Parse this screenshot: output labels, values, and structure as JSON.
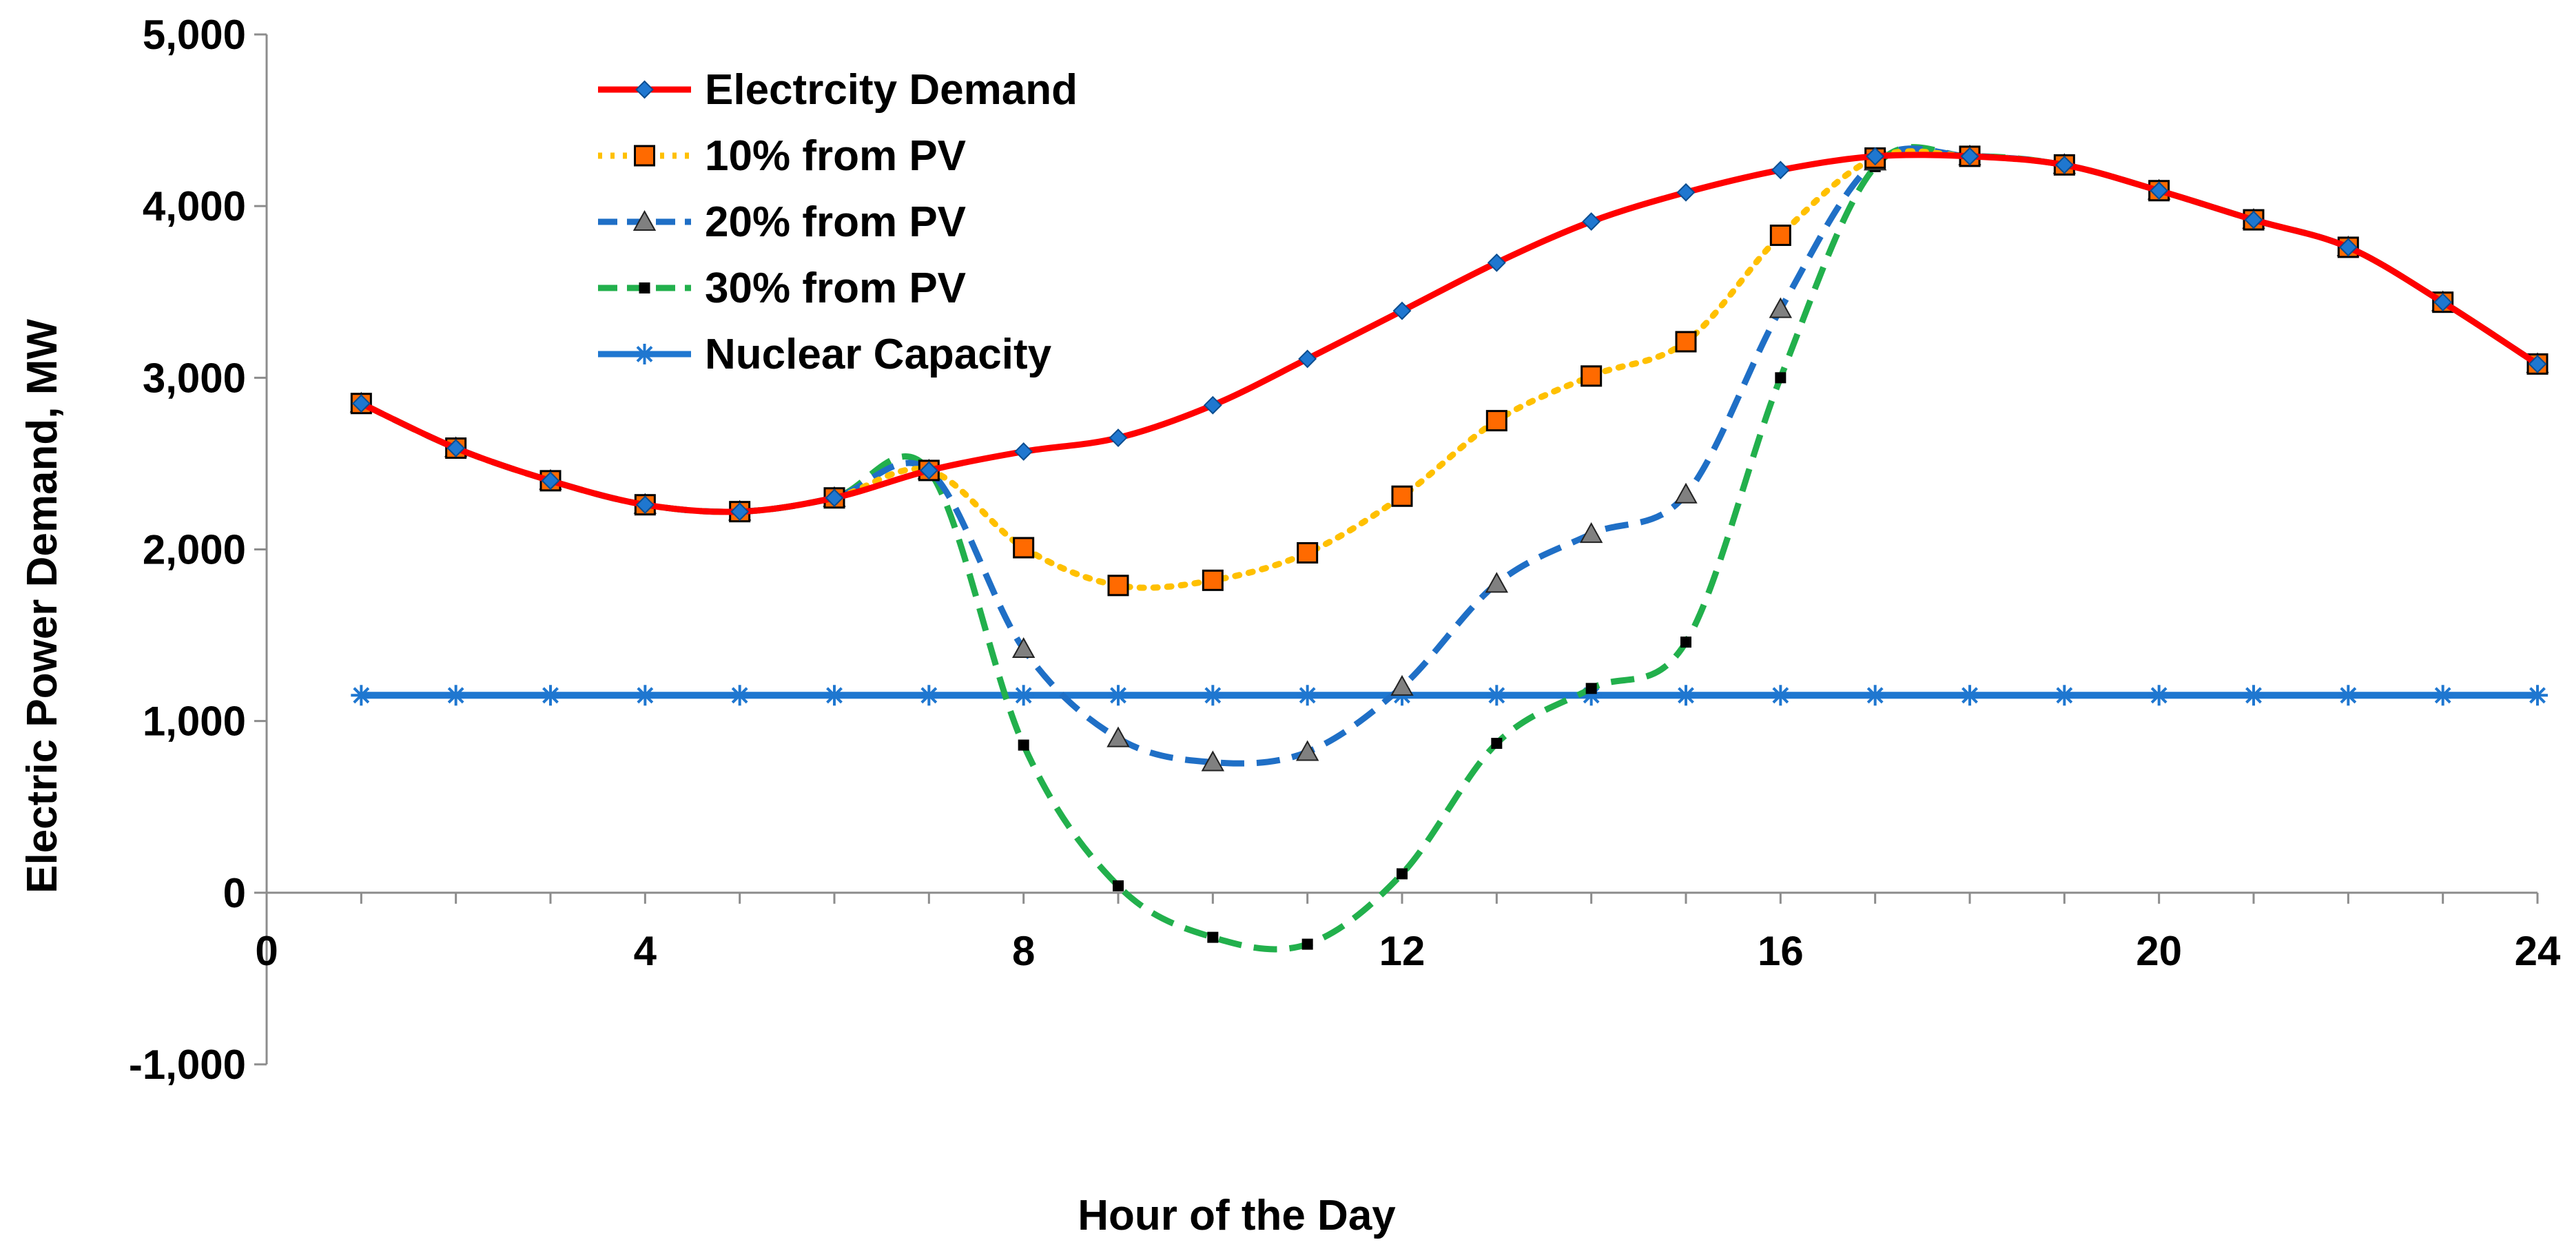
{
  "chart_data": {
    "type": "line",
    "title": "",
    "xlabel": "Hour of the Day",
    "ylabel": "Electric Power Demand, MW",
    "xlim": [
      0,
      24
    ],
    "ylim": [
      -1000,
      5000
    ],
    "x_ticks": [
      0,
      4,
      8,
      12,
      16,
      20,
      24
    ],
    "y_ticks": [
      -1000,
      0,
      1000,
      2000,
      3000,
      4000,
      5000
    ],
    "x_tick_labels": [
      "0",
      "4",
      "8",
      "12",
      "16",
      "20",
      "24"
    ],
    "y_tick_labels": [
      "-1,000",
      "0",
      "1,000",
      "2,000",
      "3,000",
      "4,000",
      "5,000"
    ],
    "grid": false,
    "legend_position": "top-left",
    "x": [
      1,
      2,
      3,
      4,
      5,
      6,
      7,
      8,
      9,
      10,
      11,
      12,
      13,
      14,
      15,
      16,
      17,
      18,
      19,
      20,
      21,
      22,
      23,
      24
    ],
    "series": [
      {
        "name": "Electrcity Demand",
        "color": "#ff0000",
        "line_style": "solid",
        "marker": "diamond",
        "marker_color": "#1f77d0",
        "values": [
          2850,
          2590,
          2400,
          2260,
          2220,
          2300,
          2460,
          2570,
          2650,
          2840,
          3110,
          3390,
          3670,
          3910,
          4080,
          4210,
          4290,
          4290,
          4240,
          4090,
          3920,
          3760,
          3440,
          3080
        ]
      },
      {
        "name": "10% from PV",
        "color": "#ffc000",
        "line_style": "dotted",
        "marker": "square",
        "marker_color": "#ff6a00",
        "values": [
          2850,
          2590,
          2400,
          2260,
          2220,
          2300,
          2460,
          2010,
          1790,
          1820,
          1980,
          2310,
          2750,
          3010,
          3210,
          3830,
          4280,
          4290,
          4240,
          4090,
          3920,
          3760,
          3440,
          3080
        ]
      },
      {
        "name": "20% from PV",
        "color": "#1f6fc6",
        "line_style": "dashed",
        "marker": "triangle",
        "marker_color": "#808080",
        "values": [
          2850,
          2590,
          2400,
          2260,
          2220,
          2300,
          2460,
          1420,
          900,
          760,
          820,
          1200,
          1800,
          2090,
          2320,
          3400,
          4260,
          4290,
          4240,
          4090,
          3920,
          3760,
          3440,
          3080
        ]
      },
      {
        "name": "30% from PV",
        "color": "#22b04c",
        "line_style": "dashed",
        "marker": "small-square",
        "marker_color": "#000000",
        "values": [
          2850,
          2590,
          2400,
          2260,
          2220,
          2300,
          2460,
          860,
          40,
          -260,
          -300,
          110,
          870,
          1190,
          1460,
          3000,
          4230,
          4290,
          4240,
          4090,
          3920,
          3760,
          3440,
          3080
        ]
      },
      {
        "name": "Nuclear Capacity",
        "color": "#1f77d0",
        "line_style": "solid",
        "marker": "asterisk",
        "marker_color": "#1f77d0",
        "values": [
          1150,
          1150,
          1150,
          1150,
          1150,
          1150,
          1150,
          1150,
          1150,
          1150,
          1150,
          1150,
          1150,
          1150,
          1150,
          1150,
          1150,
          1150,
          1150,
          1150,
          1150,
          1150,
          1150,
          1150
        ]
      }
    ]
  }
}
